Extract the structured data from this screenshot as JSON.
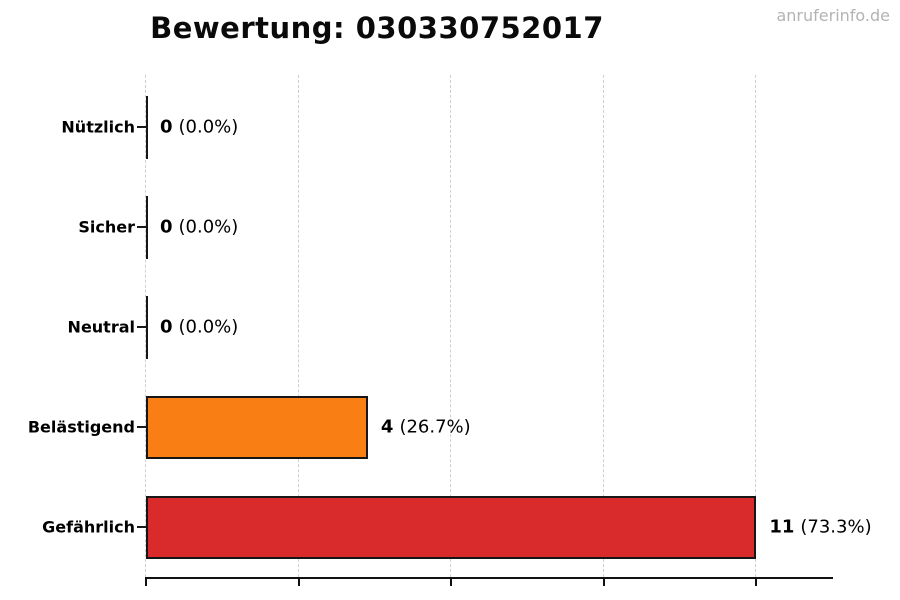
{
  "watermark": "anruferinfo.de",
  "chart_data": {
    "type": "bar",
    "orientation": "horizontal",
    "title": "Bewertung: 030330752017",
    "categories": [
      "Nützlich",
      "Sicher",
      "Neutral",
      "Belästigend",
      "Gefährlich"
    ],
    "values": [
      0,
      0,
      0,
      4,
      11
    ],
    "value_labels": [
      "0 (0.0%)",
      "0 (0.0%)",
      "0 (0.0%)",
      "4 (26.7%)",
      "11 (73.3%)"
    ],
    "rows": [
      {
        "label": "Nützlich",
        "count": "0",
        "pct": "(0.0%)"
      },
      {
        "label": "Sicher",
        "count": "0",
        "pct": "(0.0%)"
      },
      {
        "label": "Neutral",
        "count": "0",
        "pct": "(0.0%)"
      },
      {
        "label": "Belästigend",
        "count": "4",
        "pct": "(26.7%)"
      },
      {
        "label": "Gefährlich",
        "count": "11",
        "pct": "(73.3%)"
      }
    ],
    "bar_colors": [
      "#161616",
      "#161616",
      "#161616",
      "#f97e14",
      "#d92b2b"
    ],
    "xlim": [
      0,
      12.4
    ],
    "xticks": [
      0,
      2.75,
      5.5,
      8.25,
      11
    ],
    "xtick_labels_visible": false,
    "ylabel": "",
    "xlabel": "",
    "legend": "none",
    "grid": {
      "vertical": true,
      "style": "dashed",
      "color": "#cfcfcf"
    }
  }
}
